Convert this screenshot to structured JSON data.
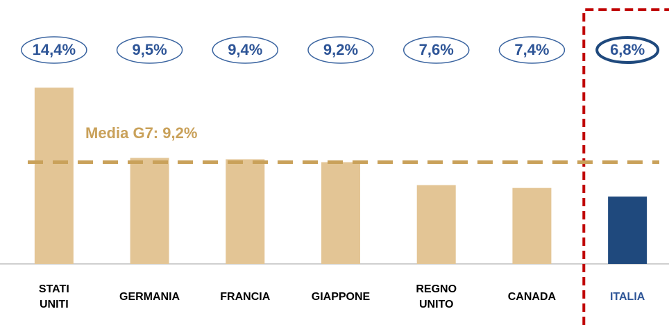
{
  "chart_data": {
    "type": "bar",
    "categories": [
      "STATI UNITI",
      "GERMANIA",
      "FRANCIA",
      "GIAPPONE",
      "REGNO UNITO",
      "CANADA",
      "ITALIA"
    ],
    "values": [
      14.4,
      9.5,
      9.4,
      9.2,
      7.6,
      7.4,
      6.8
    ],
    "value_labels": [
      "14,4%",
      "9,5%",
      "9,4%",
      "9,2%",
      "7,6%",
      "7,4%",
      "6,8%"
    ],
    "colors": [
      "#e3c595",
      "#e3c595",
      "#e3c595",
      "#e3c595",
      "#e3c595",
      "#e3c595",
      "#1f497d"
    ],
    "ylim": [
      2.1,
      16.4
    ],
    "average": {
      "value": 9.2,
      "label": "Media G7: 9,2%",
      "color": "#c9a15a"
    }
  }
}
